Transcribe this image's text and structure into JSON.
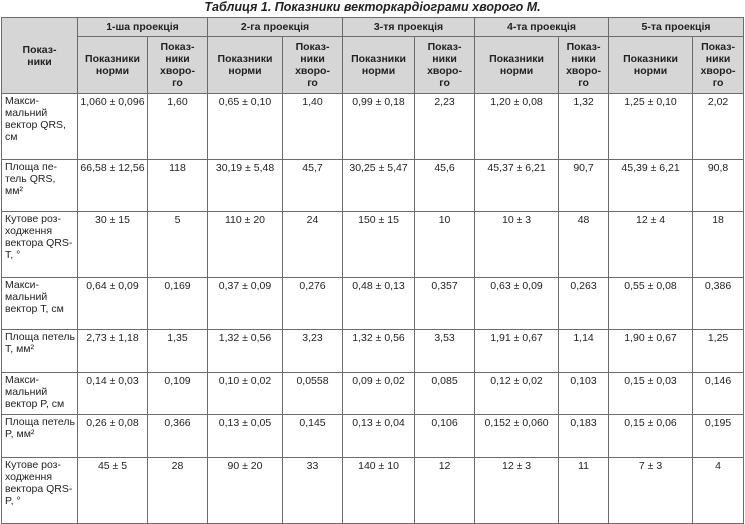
{
  "caption": "Таблиця 1. Показники векторкардіограми хворого М.",
  "header": {
    "param": "Показ-\nники",
    "projections": [
      "1-ша проекція",
      "2-га проекція",
      "3-тя проекція",
      "4-та проекція",
      "5-та проекція"
    ],
    "norm": "Показники норми",
    "patient": "Показ-\nники хворо-\nго"
  },
  "rows": [
    {
      "label": "Макси-\nмальний вектор QRS, см",
      "values": [
        "1,060 ± 0,096",
        "1,60",
        "0,65 ± 0,10",
        "1,40",
        "0,99 ± 0,18",
        "2,23",
        "1,20 ± 0,08",
        "1,32",
        "1,25 ± 0,10",
        "2,02"
      ]
    },
    {
      "label": "Площа пе-\nтель QRS, мм²",
      "values": [
        "66,58 ± 12,56",
        "118",
        "30,19 ± 5,48",
        "45,7",
        "30,25 ± 5,47",
        "45,6",
        "45,37 ± 6,21",
        "90,7",
        "45,39 ± 6,21",
        "90,8"
      ]
    },
    {
      "label": "Кутове роз-\nходження вектора QRS-T, °",
      "values": [
        "30 ± 15",
        "5",
        "110 ± 20",
        "24",
        "150 ± 15",
        "10",
        "10 ± 3",
        "48",
        "12 ± 4",
        "18"
      ]
    },
    {
      "label": "Макси-\nмальний вектор T, см",
      "values": [
        "0,64 ± 0,09",
        "0,169",
        "0,37 ± 0,09",
        "0,276",
        "0,48 ± 0,13",
        "0,357",
        "0,63 ± 0,09",
        "0,263",
        "0,55 ± 0,08",
        "0,386"
      ]
    },
    {
      "label": "Площа петель T, мм²",
      "values": [
        "2,73 ± 1,18",
        "1,35",
        "1,32 ± 0,56",
        "3,23",
        "1,32 ± 0,56",
        "3,53",
        "1,91 ± 0,67",
        "1,14",
        "1,90 ± 0,67",
        "1,25"
      ]
    },
    {
      "label": "Макси-\nмальний вектор P, см",
      "values": [
        "0,14 ± 0,03",
        "0,109",
        "0,10 ± 0,02",
        "0,0558",
        "0,09 ± 0,02",
        "0,085",
        "0,12 ± 0,02",
        "0,103",
        "0,15 ± 0,03",
        "0,146"
      ]
    },
    {
      "label": "Площа петель P, мм²",
      "values": [
        "0,26 ± 0,08",
        "0,366",
        "0,13 ± 0,05",
        "0,145",
        "0,13 ± 0,04",
        "0,106",
        "0,152 ± 0,060",
        "0,183",
        "0,15 ± 0,06",
        "0,195"
      ]
    },
    {
      "label": "Кутове роз-\nходження вектора QRS-P, °",
      "values": [
        "45 ± 5",
        "28",
        "90 ± 20",
        "33",
        "140 ± 10",
        "12",
        "12 ± 3",
        "11",
        "7 ± 3",
        "4"
      ]
    }
  ]
}
